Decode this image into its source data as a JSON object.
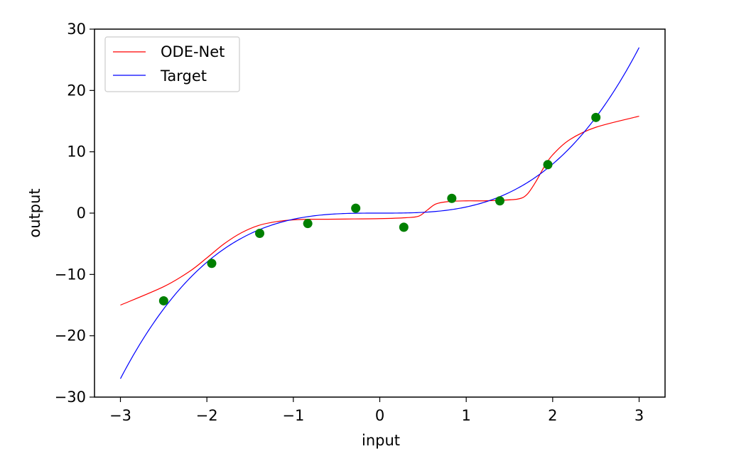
{
  "chart_data": {
    "type": "line",
    "title": "",
    "xlabel": "input",
    "ylabel": "output",
    "xlim": [
      -3.3,
      3.3
    ],
    "ylim": [
      -30,
      30
    ],
    "xticks": [
      -3,
      -2,
      -1,
      0,
      1,
      2,
      3
    ],
    "xtick_labels": [
      "−3",
      "−2",
      "−1",
      "0",
      "1",
      "2",
      "3"
    ],
    "yticks": [
      -30,
      -20,
      -10,
      0,
      10,
      20,
      30
    ],
    "ytick_labels": [
      "−30",
      "−20",
      "−10",
      "0",
      "10",
      "20",
      "30"
    ],
    "grid": false,
    "legend_position": "top-left",
    "series": [
      {
        "name": "ODE-Net",
        "kind": "line",
        "color": "#ff0000",
        "x": [
          -3.0,
          -2.5,
          -2.2,
          -2.0,
          -1.8,
          -1.6,
          -1.4,
          -1.2,
          -1.0,
          -0.8,
          -0.6,
          -0.3,
          0.0,
          0.3,
          0.45,
          0.55,
          0.65,
          0.8,
          1.0,
          1.2,
          1.4,
          1.6,
          1.7,
          1.8,
          1.9,
          2.0,
          2.2,
          2.5,
          3.0
        ],
        "y": [
          -15.0,
          -12.0,
          -9.5,
          -7.3,
          -5.0,
          -3.2,
          -2.0,
          -1.4,
          -1.1,
          -1.0,
          -1.0,
          -0.95,
          -0.9,
          -0.75,
          -0.5,
          0.5,
          1.5,
          1.9,
          2.0,
          2.0,
          2.1,
          2.3,
          3.0,
          5.0,
          7.5,
          9.5,
          12.0,
          14.0,
          15.8
        ]
      },
      {
        "name": "Target",
        "kind": "line",
        "color": "#0000ff",
        "function": "x^3",
        "x_range": [
          -3,
          3
        ]
      },
      {
        "name": "",
        "kind": "scatter",
        "color": "#008000",
        "x": [
          -2.5,
          -1.944,
          -1.389,
          -0.833,
          -0.278,
          0.278,
          0.833,
          1.389,
          1.944,
          2.5
        ],
        "y": [
          -14.3,
          -8.2,
          -3.3,
          -1.7,
          0.8,
          -2.3,
          2.4,
          2.0,
          7.9,
          15.6
        ]
      }
    ]
  }
}
